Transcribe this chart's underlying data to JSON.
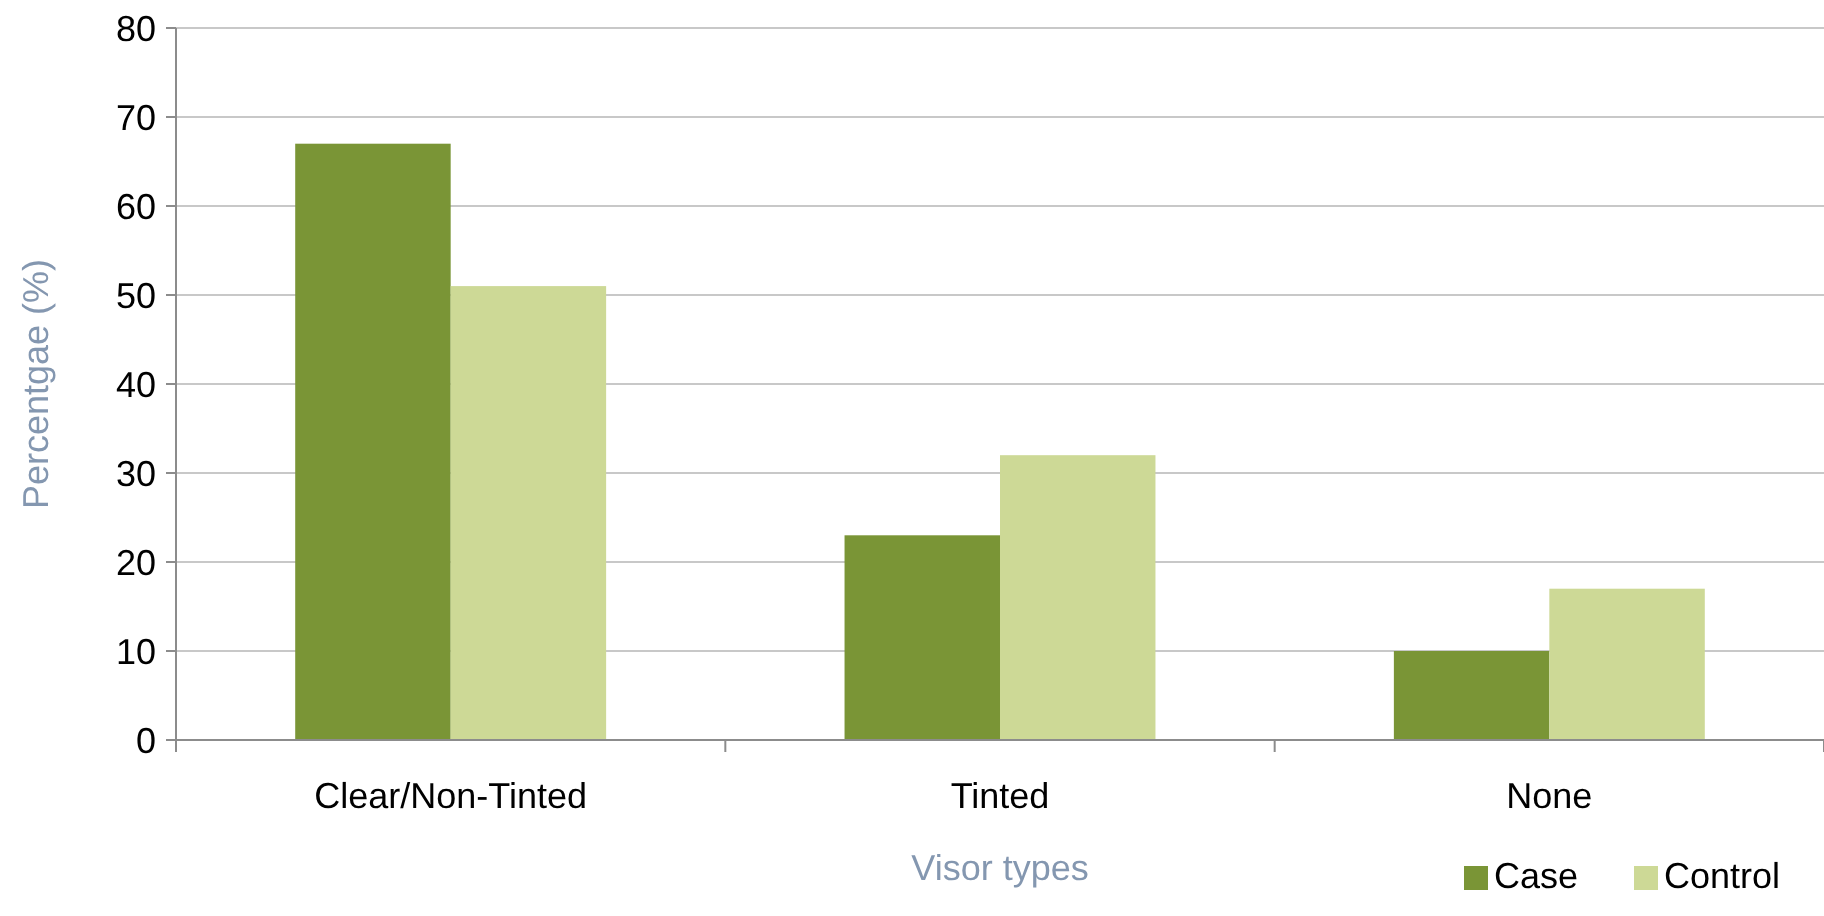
{
  "chart_data": {
    "type": "bar",
    "xlabel": "Visor types",
    "ylabel": "Percentgae (%)",
    "categories": [
      "Clear/Non-Tinted",
      "Tinted",
      "None"
    ],
    "series": [
      {
        "name": "Case",
        "color": "#7a9536",
        "values": [
          67,
          23,
          10
        ]
      },
      {
        "name": "Control",
        "color": "#cdd996",
        "values": [
          51,
          32,
          17
        ]
      }
    ],
    "ylim": [
      0,
      80
    ],
    "yticks": [
      0,
      10,
      20,
      30,
      40,
      50,
      60,
      70,
      80
    ],
    "grid": "y",
    "legend": "bottom right"
  }
}
